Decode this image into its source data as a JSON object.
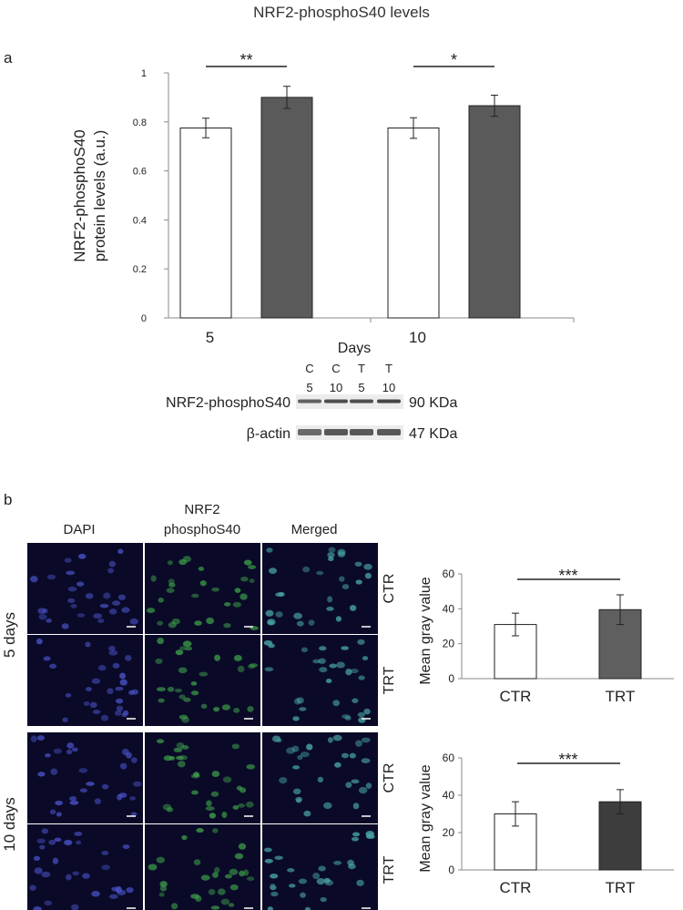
{
  "figure_title": "NRF2-phosphoS40 levels",
  "panel_labels": [
    "a",
    "b"
  ],
  "colors": {
    "control": "#ffffff",
    "treated_a": "#5a5a5a",
    "treated_b_top": "#5f5f5f",
    "treated_b_bottom": "#3d3d3d",
    "axis": "#888888",
    "dapi": "#4a52c8",
    "nrf2": "#3fa34a",
    "merged": "#4aa6a8",
    "micrograph_bg": "#0a0a28"
  },
  "chart_data": [
    {
      "id": "panel-a",
      "type": "bar",
      "ylabel": [
        "NRF2-phosphoS40",
        "protein levels (a.u.)"
      ],
      "xlabel": "Days",
      "categories": [
        "5",
        "10"
      ],
      "series": [
        {
          "values": [
            0.775,
            0.775
          ],
          "errors": [
            0.04,
            0.042
          ],
          "color": "#ffffff"
        },
        {
          "values": [
            0.9,
            0.866
          ],
          "errors": [
            0.045,
            0.043
          ],
          "color": "#5a5a5a"
        }
      ],
      "ylim": [
        0,
        1
      ],
      "yticks": [
        0,
        0.2,
        0.4,
        0.6,
        0.8,
        1
      ],
      "ytick_labels": [
        "0",
        "0.2",
        "0.4",
        "0.6",
        "0.8",
        "1"
      ],
      "significance": [
        {
          "category": "5",
          "label": "**"
        },
        {
          "category": "10",
          "label": "*"
        }
      ]
    },
    {
      "id": "panel-b-5days",
      "type": "bar",
      "ylabel": "Mean gray value",
      "categories": [
        "CTR",
        "TRT"
      ],
      "values": [
        31,
        39.5
      ],
      "errors": [
        6.5,
        8.5
      ],
      "colors": [
        "#ffffff",
        "#5f5f5f"
      ],
      "ylim": [
        0,
        60
      ],
      "yticks": [
        0,
        20,
        40,
        60
      ],
      "ytick_labels": [
        "0",
        "20",
        "40",
        "60"
      ],
      "significance": "***"
    },
    {
      "id": "panel-b-10days",
      "type": "bar",
      "ylabel": "Mean gray value",
      "categories": [
        "CTR",
        "TRT"
      ],
      "values": [
        30,
        36.5
      ],
      "errors": [
        6.5,
        6.5
      ],
      "colors": [
        "#ffffff",
        "#3d3d3d"
      ],
      "ylim": [
        0,
        60
      ],
      "yticks": [
        0,
        20,
        40,
        60
      ],
      "ytick_labels": [
        "0",
        "20",
        "40",
        "60"
      ],
      "significance": "***"
    }
  ],
  "western_blot": {
    "lanes": [
      {
        "group": "C",
        "day": "5"
      },
      {
        "group": "C",
        "day": "10"
      },
      {
        "group": "T",
        "day": "5"
      },
      {
        "group": "T",
        "day": "10"
      }
    ],
    "rows": [
      {
        "label": "NRF2-phosphoS40",
        "size": "90 KDa",
        "intensity": [
          0.75,
          0.85,
          0.85,
          0.9
        ]
      },
      {
        "label": "β-actin",
        "size": "47 KDa",
        "intensity": [
          0.7,
          0.8,
          0.8,
          0.8
        ]
      }
    ]
  },
  "micrographs": {
    "columns": [
      "DAPI",
      "NRF2\nphosphoS40",
      "Merged"
    ],
    "groups": [
      {
        "label": "5 days",
        "rows": [
          "CTR",
          "TRT"
        ]
      },
      {
        "label": "10 days",
        "rows": [
          "CTR",
          "TRT"
        ]
      }
    ]
  }
}
